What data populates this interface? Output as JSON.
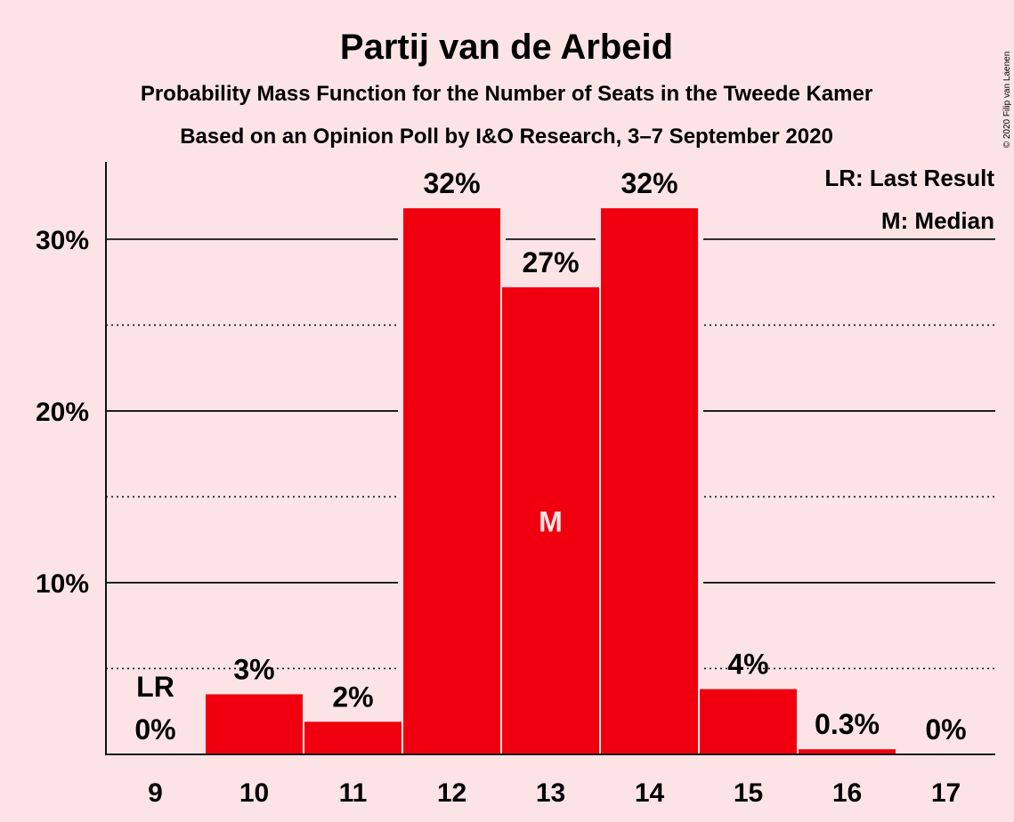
{
  "title": "Partij van de Arbeid",
  "subtitle1": "Probability Mass Function for the Number of Seats in the Tweede Kamer",
  "subtitle2": "Based on an Opinion Poll by I&O Research, 3–7 September 2020",
  "copyright": "© 2020 Filip van Laenen",
  "legend": {
    "lr": "LR: Last Result",
    "median": "M: Median"
  },
  "colors": {
    "bar": "#F0000F",
    "background": "#FCE4E6",
    "text": "#111111"
  },
  "chart_data": {
    "type": "bar",
    "categories": [
      "9",
      "10",
      "11",
      "12",
      "13",
      "14",
      "15",
      "16",
      "17"
    ],
    "values": [
      0,
      3.5,
      1.9,
      31.8,
      27.2,
      31.8,
      3.8,
      0.3,
      0
    ],
    "data_labels": [
      "0%",
      "3%",
      "2%",
      "32%",
      "27%",
      "32%",
      "4%",
      "0.3%",
      "0%"
    ],
    "y_ticks": [
      {
        "value": 10,
        "label": "10%"
      },
      {
        "value": 20,
        "label": "20%"
      },
      {
        "value": 30,
        "label": "30%"
      }
    ],
    "minor_gridlines": [
      5,
      15,
      25
    ],
    "ylim": [
      0,
      34.5
    ],
    "last_result": {
      "category": "9",
      "label": "LR"
    },
    "median": {
      "category": "13",
      "label": "M"
    },
    "grid": true,
    "legend_position": "top-right"
  }
}
